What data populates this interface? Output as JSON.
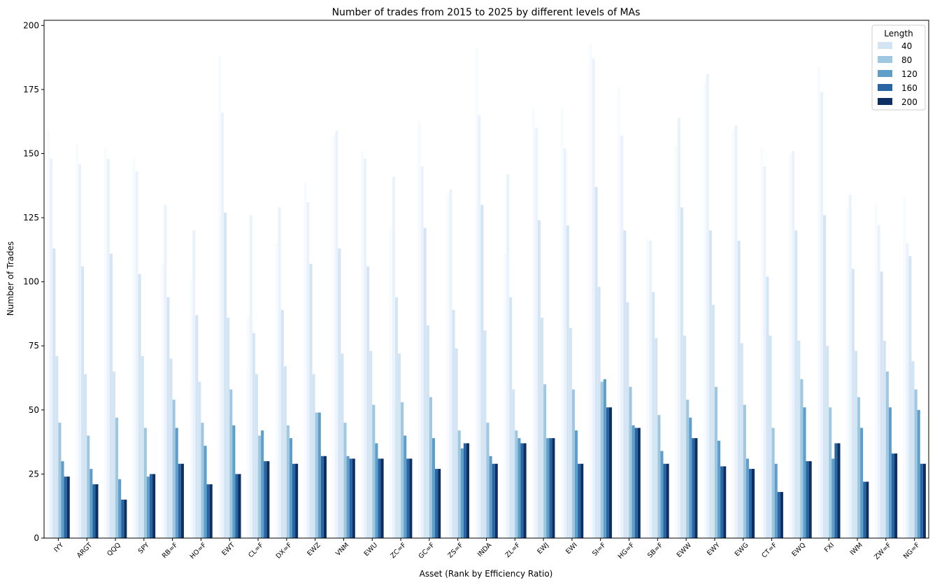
{
  "chart_data": {
    "type": "bar",
    "title": "Number of trades from 2015 to 2025 by different levels of MAs",
    "xlabel": "Asset (Rank by Efficiency Ratio)",
    "ylabel": "Number of Trades",
    "ylim": [
      0,
      202
    ],
    "yticks": [
      0,
      25,
      50,
      75,
      100,
      125,
      150,
      175,
      200
    ],
    "grid": false,
    "legend": {
      "title": "Length",
      "placement": "top-right"
    },
    "categories": [
      "IYY",
      "ARGT",
      "QQQ",
      "SPY",
      "RB=F",
      "HO=F",
      "EWT",
      "CL=F",
      "DX=F",
      "EWZ",
      "VNM",
      "EWU",
      "ZC=F",
      "GC=F",
      "ZS=F",
      "INDA",
      "ZL=F",
      "EWJ",
      "EWI",
      "SI=F",
      "HG=F",
      "SB=F",
      "EWW",
      "EWY",
      "EWG",
      "CT=F",
      "EWQ",
      "FXI",
      "IWM",
      "ZW=F",
      "NG=F"
    ],
    "faint_series": [
      {
        "color": "#f7fbff",
        "values": [
          159,
          154,
          152,
          148,
          107,
          101,
          188,
          87,
          115,
          139,
          157,
          151,
          121,
          163,
          134,
          191,
          111,
          168,
          168,
          193,
          176,
          117,
          153,
          178,
          159,
          152,
          150,
          184,
          129,
          130,
          133
        ]
      },
      {
        "color": "#eaf3fb",
        "values": [
          148,
          146,
          148,
          143,
          130,
          120,
          166,
          126,
          129,
          131,
          159,
          148,
          141,
          145,
          136,
          165,
          142,
          160,
          152,
          187,
          157,
          116,
          164,
          181,
          161,
          145,
          151,
          174,
          134,
          122,
          115
        ]
      },
      {
        "color": "#d5e5f4",
        "values": [
          113,
          106,
          111,
          103,
          94,
          87,
          127,
          80,
          89,
          107,
          113,
          106,
          94,
          121,
          89,
          130,
          94,
          124,
          122,
          137,
          120,
          96,
          129,
          120,
          116,
          102,
          120,
          126,
          105,
          104,
          110
        ]
      }
    ],
    "series": [
      {
        "name": "40",
        "color": "#d3e4f3",
        "values": [
          71,
          64,
          65,
          71,
          70,
          61,
          86,
          64,
          67,
          64,
          72,
          73,
          72,
          83,
          74,
          81,
          58,
          86,
          82,
          98,
          92,
          78,
          79,
          91,
          76,
          79,
          77,
          75,
          73,
          77,
          69
        ]
      },
      {
        "name": "80",
        "color": "#a0c7e0",
        "values": [
          45,
          40,
          47,
          43,
          54,
          45,
          58,
          40,
          44,
          49,
          45,
          52,
          53,
          55,
          42,
          45,
          42,
          60,
          58,
          61,
          59,
          48,
          54,
          59,
          52,
          43,
          62,
          51,
          55,
          65,
          58
        ]
      },
      {
        "name": "120",
        "color": "#5e9ec8",
        "values": [
          30,
          27,
          23,
          24,
          43,
          36,
          44,
          42,
          39,
          49,
          32,
          37,
          40,
          39,
          35,
          32,
          39,
          39,
          42,
          62,
          44,
          34,
          47,
          38,
          31,
          29,
          51,
          31,
          43,
          51,
          50
        ]
      },
      {
        "name": "160",
        "color": "#2865a4",
        "values": [
          24,
          21,
          15,
          25,
          29,
          21,
          25,
          30,
          29,
          32,
          31,
          31,
          31,
          27,
          37,
          29,
          37,
          39,
          29,
          51,
          43,
          29,
          39,
          28,
          27,
          18,
          30,
          37,
          22,
          33,
          29
        ]
      },
      {
        "name": "200",
        "color": "#0e2f62",
        "values": [
          24,
          21,
          15,
          25,
          29,
          21,
          25,
          30,
          29,
          32,
          31,
          31,
          31,
          27,
          37,
          29,
          37,
          39,
          29,
          51,
          43,
          29,
          39,
          28,
          27,
          18,
          30,
          37,
          22,
          33,
          29
        ]
      }
    ]
  }
}
